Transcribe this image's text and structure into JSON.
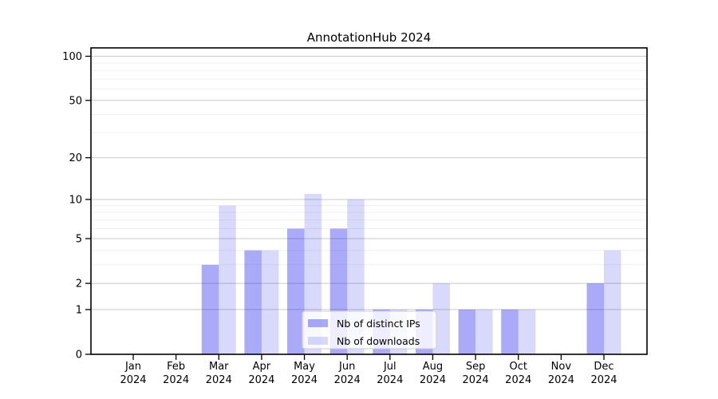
{
  "chart_data": {
    "type": "bar",
    "title": "AnnotationHub 2024",
    "categories": [
      "Jan",
      "Feb",
      "Mar",
      "Apr",
      "May",
      "Jun",
      "Jul",
      "Aug",
      "Sep",
      "Oct",
      "Nov",
      "Dec"
    ],
    "category_year": "2024",
    "series": [
      {
        "name": "Nb of distinct IPs",
        "color": "rgba(20,20,235,0.36)",
        "values": [
          0,
          0,
          3,
          4,
          6,
          6,
          1,
          1,
          1,
          1,
          0,
          2
        ]
      },
      {
        "name": "Nb of downloads",
        "color": "rgba(20,20,235,0.16)",
        "values": [
          0,
          0,
          9,
          4,
          11,
          10,
          1,
          2,
          1,
          1,
          0,
          4
        ]
      }
    ],
    "xlabel": "",
    "ylabel": "",
    "y_scale": "log1p",
    "ylim": [
      0,
      114
    ],
    "y_major_ticks": [
      0,
      1,
      2,
      5,
      10,
      20,
      50,
      100
    ],
    "y_minor_gridlines": [
      3,
      4,
      6,
      7,
      8,
      9,
      30,
      40,
      60,
      70,
      80,
      90
    ],
    "grid": true,
    "legend_position": "lower center"
  },
  "colors": {
    "background": "#ffffff",
    "axis": "#000000",
    "grid_major": "#c9c9c9",
    "grid_minor": "#f0f0f0",
    "text": "#000000",
    "legend_bg": "rgba(255,255,255,0.8)",
    "legend_border": "#cccccc"
  }
}
